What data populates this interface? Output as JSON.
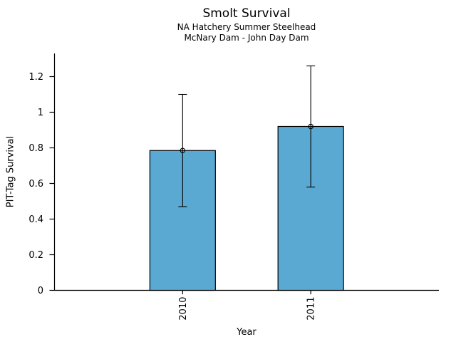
{
  "chart_data": {
    "type": "bar",
    "title": "Smolt Survival",
    "subtitle": [
      "NA Hatchery Summer Steelhead",
      "McNary Dam - John Day Dam"
    ],
    "xlabel": "Year",
    "ylabel": "PIT-Tag Survival",
    "categories": [
      "2010",
      "2011"
    ],
    "values": [
      0.785,
      0.92
    ],
    "error_low": [
      0.47,
      0.58
    ],
    "error_high": [
      1.1,
      1.26
    ],
    "yticks": [
      0,
      0.2,
      0.4,
      0.6,
      0.8,
      1,
      1.2
    ],
    "ytick_labels": [
      "0",
      "0.2",
      "0.4",
      "0.6",
      "0.8",
      "1",
      "1.2"
    ],
    "ylim": [
      0,
      1.33
    ],
    "grid": false,
    "legend": false,
    "bar_color": "#59A9D2",
    "bar_edge_color": "#000000",
    "error_color": "#000000",
    "marker": "open-circle",
    "xtick_rotation": -90
  }
}
